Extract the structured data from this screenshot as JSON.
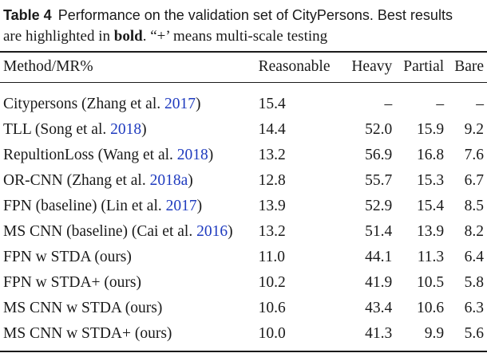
{
  "caption": {
    "label": "Table 4",
    "text_part1": "Performance on the validation set of CityPersons. Best results",
    "text_part2": "are highlighted in",
    "bold_word": "bold",
    "text_part3": ". “+’ means multi-scale testing"
  },
  "table": {
    "headers": {
      "method": "Method/MR%",
      "reasonable": "Reasonable",
      "heavy": "Heavy",
      "partial": "Partial",
      "bare": "Bare"
    },
    "rows": [
      {
        "method": "Citypersons (Zhang et al. ",
        "year": "2017",
        "close": ")",
        "reasonable": "15.4",
        "heavy": "–",
        "partial": "–",
        "bare": "–"
      },
      {
        "method": "TLL (Song et al. ",
        "year": "2018",
        "close": ")",
        "reasonable": "14.4",
        "heavy": "52.0",
        "partial": "15.9",
        "bare": "9.2"
      },
      {
        "method": "RepultionLoss (Wang et al. ",
        "year": "2018",
        "close": ")",
        "reasonable": "13.2",
        "heavy": "56.9",
        "partial": "16.8",
        "bare": "7.6"
      },
      {
        "method": "OR-CNN (Zhang et al. ",
        "year": "2018a",
        "close": ")",
        "reasonable": "12.8",
        "heavy": "55.7",
        "partial": "15.3",
        "bare": "6.7"
      },
      {
        "method": "FPN (baseline) (Lin et al. ",
        "year": "2017",
        "close": ")",
        "reasonable": "13.9",
        "heavy": "52.9",
        "partial": "15.4",
        "bare": "8.5"
      },
      {
        "method": "MS CNN (baseline) (Cai et al. ",
        "year": "2016",
        "close": ")",
        "reasonable": "13.2",
        "heavy": "51.4",
        "partial": "13.9",
        "bare": "8.2"
      },
      {
        "method": "FPN w STDA (ours)",
        "reasonable": "11.0",
        "heavy": "44.1",
        "partial": "11.3",
        "bare": "6.4"
      },
      {
        "method": "FPN w STDA+ (ours)",
        "reasonable": "10.2",
        "heavy": "41.9",
        "partial": "10.5",
        "bare": "5.8"
      },
      {
        "method": "MS CNN w STDA (ours)",
        "reasonable": "10.6",
        "heavy": "43.4",
        "partial": "10.6",
        "bare": "6.3"
      },
      {
        "method": "MS CNN w STDA+ (ours)",
        "reasonable": "10.0",
        "heavy": "41.3",
        "partial": "9.9",
        "bare": "5.6"
      }
    ]
  }
}
